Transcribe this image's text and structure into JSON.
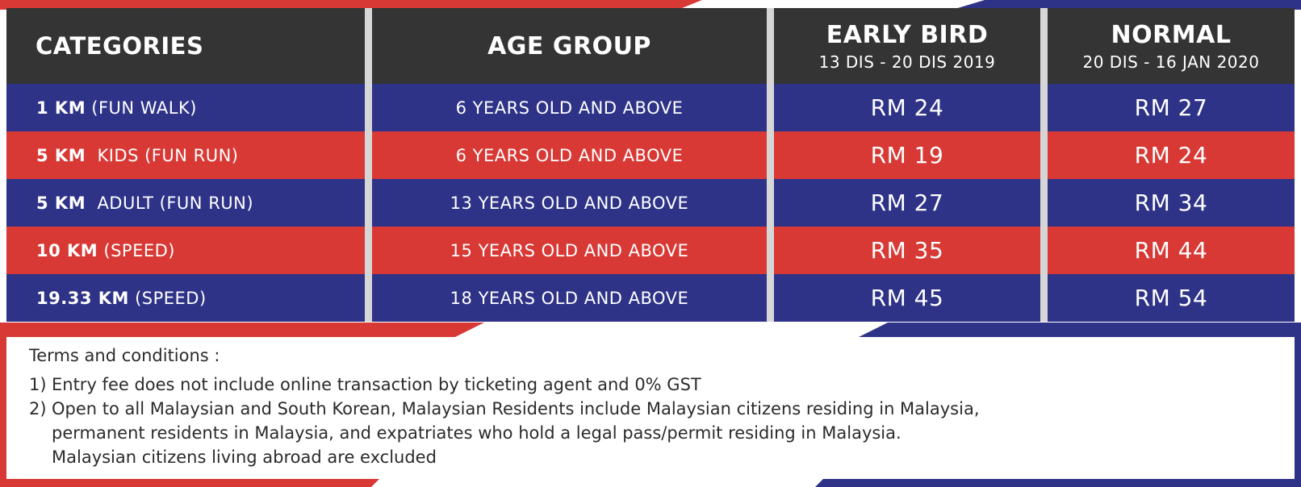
{
  "colors": {
    "header": "#343434",
    "blue": "#2e3388",
    "red": "#d83935",
    "divider": "#d6d6d6"
  },
  "table": {
    "headers": {
      "categories": "CATEGORIES",
      "age_group": "AGE GROUP",
      "early_bird": {
        "title": "EARLY BIRD",
        "dates": "13 DIS - 20 DIS 2019"
      },
      "normal": {
        "title": "NORMAL",
        "dates": "20 DIS - 16 JAN 2020"
      }
    },
    "rows": [
      {
        "distance": "1 KM",
        "category": " (FUN WALK)",
        "age": "6 YEARS OLD AND ABOVE",
        "early_bird": "RM 24",
        "normal": "RM 27"
      },
      {
        "distance": "5 KM",
        "category": "  KIDS (FUN RUN)",
        "age": "6 YEARS OLD AND ABOVE",
        "early_bird": "RM 19",
        "normal": "RM 24"
      },
      {
        "distance": "5 KM",
        "category": "  ADULT (FUN RUN)",
        "age": "13 YEARS OLD AND ABOVE",
        "early_bird": "RM 27",
        "normal": "RM 34"
      },
      {
        "distance": "10 KM",
        "category": " (SPEED)",
        "age": "15 YEARS OLD AND ABOVE",
        "early_bird": "RM 35",
        "normal": "RM 44"
      },
      {
        "distance": "19.33 KM",
        "category": " (SPEED)",
        "age": "18 YEARS OLD AND ABOVE",
        "early_bird": "RM 45",
        "normal": "RM 54"
      }
    ]
  },
  "terms": {
    "title": "Terms and conditions :",
    "items": [
      {
        "num": "1)",
        "lines": [
          "Entry fee does not include online transaction by ticketing agent and 0% GST"
        ]
      },
      {
        "num": "2)",
        "lines": [
          "Open to all Malaysian and South Korean, Malaysian Residents include Malaysian citizens residing in Malaysia,",
          "permanent residents in Malaysia, and expatriates who hold a legal pass/permit residing in Malaysia.",
          "Malaysian citizens living abroad are excluded"
        ]
      }
    ]
  }
}
